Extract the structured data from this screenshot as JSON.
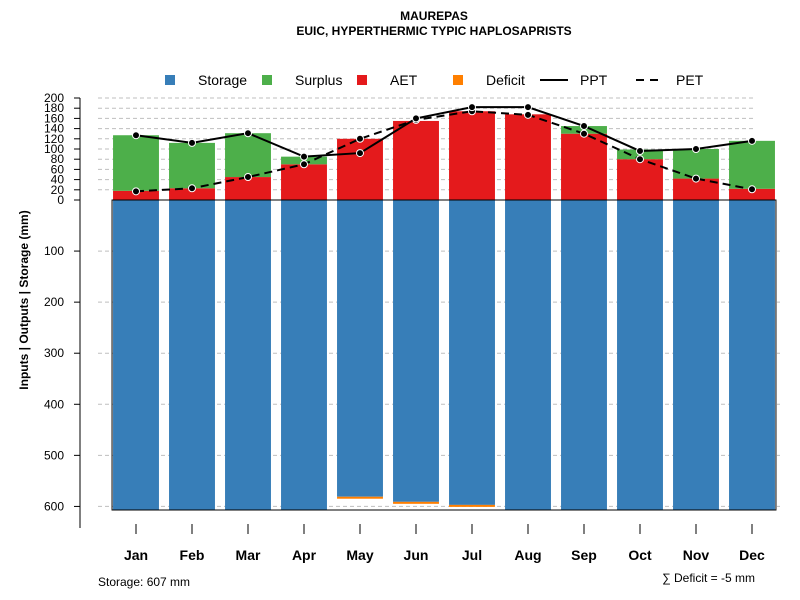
{
  "chart_data": {
    "type": "bar",
    "title": "MAUREPAS",
    "subtitle": "EUIC, HYPERTHERMIC TYPIC HAPLOSAPRISTS",
    "ylabel": "Inputs | Outputs | Storage    (mm)",
    "categories": [
      "Jan",
      "Feb",
      "Mar",
      "Apr",
      "May",
      "Jun",
      "Jul",
      "Aug",
      "Sep",
      "Oct",
      "Nov",
      "Dec"
    ],
    "legend": [
      "Storage",
      "Surplus",
      "AET",
      "Deficit",
      "PPT",
      "PET"
    ],
    "colors": {
      "storage": "#377eb8",
      "surplus": "#4daf4a",
      "aet": "#e41a1c",
      "deficit": "#ff7f00",
      "axis": "#000000",
      "grid": "#bfbfbf"
    },
    "upper_ticks": [
      "200",
      "180",
      "160",
      "140",
      "120",
      "100",
      "80",
      "60",
      "40",
      "20",
      "0"
    ],
    "lower_ticks": [
      "100",
      "200",
      "300",
      "400",
      "500",
      "600"
    ],
    "upper_ylim": [
      0,
      200
    ],
    "lower_ylim": [
      0,
      607
    ],
    "series": [
      {
        "name": "Storage",
        "values": [
          607,
          607,
          607,
          607,
          581,
          591,
          597,
          607,
          607,
          607,
          607,
          607
        ]
      },
      {
        "name": "Surplus",
        "values": [
          109,
          89,
          86,
          15,
          0,
          0,
          0,
          0,
          15,
          19,
          58,
          94
        ]
      },
      {
        "name": "AET",
        "values": [
          18,
          23,
          45,
          70,
          120,
          155,
          174,
          168,
          130,
          80,
          42,
          22
        ]
      },
      {
        "name": "Deficit",
        "values": [
          0,
          0,
          0,
          0,
          1,
          2,
          1,
          0,
          0,
          0,
          0,
          0
        ]
      },
      {
        "name": "PPT",
        "values": [
          127,
          112,
          131,
          85,
          92,
          160,
          182,
          182,
          145,
          96,
          100,
          116
        ]
      },
      {
        "name": "PET",
        "values": [
          17,
          23,
          45,
          70,
          120,
          157,
          174,
          167,
          130,
          80,
          42,
          21
        ]
      }
    ],
    "storage_label": "Storage: 607 mm",
    "deficit_label": "∑ Deficit = -5 mm"
  }
}
